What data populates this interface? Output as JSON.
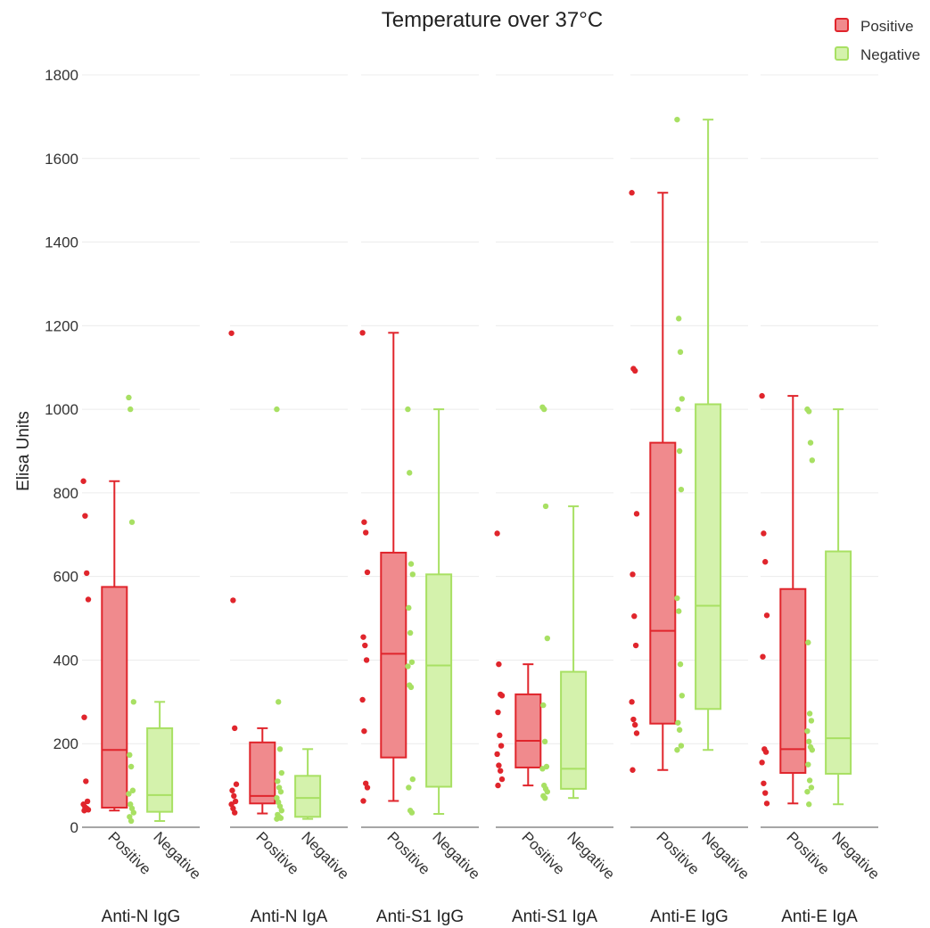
{
  "chart_data": {
    "type": "box",
    "title": "Temperature over 37°C",
    "ylabel": "Elisa Units",
    "ylim": [
      0,
      1800
    ],
    "yticks": [
      0,
      200,
      400,
      600,
      800,
      1000,
      1200,
      1400,
      1600,
      1800
    ],
    "grid": true,
    "legend": {
      "placement": "top-right",
      "entries": [
        {
          "name": "Positive",
          "color": "#e0252c",
          "fill": "#f08a8d"
        },
        {
          "name": "Negative",
          "color": "#a8e063",
          "fill": "#d4f2ac"
        }
      ]
    },
    "panels": [
      {
        "name": "Anti-N IgG",
        "groups": [
          {
            "label": "Positive",
            "min": 40,
            "q1": 47,
            "median": 185,
            "q3": 575,
            "max": 828,
            "points": [
              828,
              745,
              608,
              545,
              263,
              110,
              62,
              55,
              48,
              45,
              42,
              40
            ]
          },
          {
            "label": "Negative",
            "min": 15,
            "q1": 37,
            "median": 77,
            "q3": 237,
            "max": 300,
            "points": [
              1028,
              1000,
              730,
              300,
              173,
              145,
              88,
              80,
              55,
              45,
              35,
              25,
              15
            ]
          }
        ]
      },
      {
        "name": "Anti-N IgA",
        "groups": [
          {
            "label": "Positive",
            "min": 33,
            "q1": 57,
            "median": 75,
            "q3": 203,
            "max": 237,
            "points": [
              1182,
              543,
              237,
              103,
              88,
              75,
              62,
              55,
              45,
              35
            ]
          },
          {
            "label": "Negative",
            "min": 20,
            "q1": 25,
            "median": 70,
            "q3": 123,
            "max": 187,
            "points": [
              1000,
              300,
              187,
              130,
              110,
              95,
              85,
              70,
              60,
              50,
              40,
              30,
              25,
              22,
              20
            ]
          }
        ]
      },
      {
        "name": "Anti-S1 IgG",
        "groups": [
          {
            "label": "Positive",
            "min": 63,
            "q1": 167,
            "median": 415,
            "q3": 657,
            "max": 1183,
            "points": [
              1183,
              730,
              705,
              610,
              455,
              435,
              400,
              305,
              230,
              105,
              95,
              63
            ]
          },
          {
            "label": "Negative",
            "min": 32,
            "q1": 97,
            "median": 387,
            "q3": 605,
            "max": 1000,
            "points": [
              1000,
              848,
              630,
              605,
              525,
              465,
              395,
              385,
              340,
              335,
              115,
              95,
              40,
              35
            ]
          }
        ]
      },
      {
        "name": "Anti-S1 IgA",
        "groups": [
          {
            "label": "Positive",
            "min": 100,
            "q1": 143,
            "median": 207,
            "q3": 318,
            "max": 390,
            "points": [
              703,
              390,
              318,
              315,
              275,
              220,
              195,
              175,
              148,
              135,
              115,
              100
            ]
          },
          {
            "label": "Negative",
            "min": 70,
            "q1": 92,
            "median": 140,
            "q3": 372,
            "max": 768,
            "points": [
              1005,
              1000,
              768,
              452,
              292,
              205,
              145,
              140,
              100,
              92,
              85,
              75,
              70
            ]
          }
        ]
      },
      {
        "name": "Anti-E IgG",
        "groups": [
          {
            "label": "Positive",
            "min": 137,
            "q1": 248,
            "median": 470,
            "q3": 920,
            "max": 1518,
            "points": [
              1518,
              1097,
              1092,
              750,
              605,
              505,
              435,
              300,
              258,
              245,
              225,
              137
            ]
          },
          {
            "label": "Negative",
            "min": 185,
            "q1": 283,
            "median": 530,
            "q3": 1012,
            "max": 1693,
            "points": [
              1693,
              1217,
              1137,
              1025,
              1000,
              900,
              808,
              548,
              517,
              390,
              315,
              250,
              233,
              195,
              185
            ]
          }
        ]
      },
      {
        "name": "Anti-E IgA",
        "groups": [
          {
            "label": "Positive",
            "min": 57,
            "q1": 130,
            "median": 187,
            "q3": 570,
            "max": 1032,
            "points": [
              1032,
              703,
              635,
              507,
              408,
              187,
              180,
              155,
              105,
              82,
              57
            ]
          },
          {
            "label": "Negative",
            "min": 55,
            "q1": 128,
            "median": 213,
            "q3": 660,
            "max": 1000,
            "points": [
              1000,
              995,
              920,
              878,
              442,
              272,
              255,
              230,
              205,
              192,
              185,
              150,
              112,
              95,
              85,
              55
            ]
          }
        ]
      }
    ]
  }
}
